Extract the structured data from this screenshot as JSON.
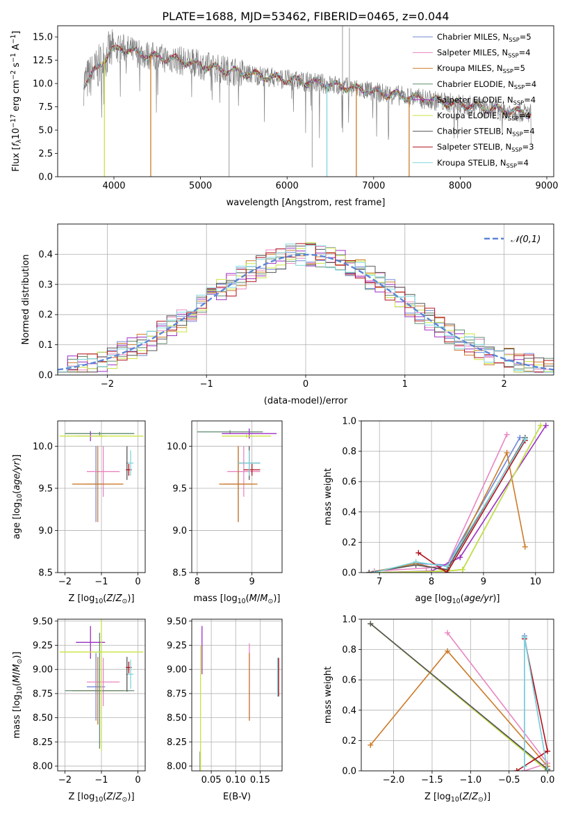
{
  "figure_title": "PLATE=1688, MJD=53462, FIBERID=0465, z=0.044",
  "colors": {
    "Chabrier MILES": "#6f87d6",
    "Salpeter MILES": "#e985c1",
    "Kroupa MILES": "#cc7a28",
    "Chabrier ELODIE": "#5f8a6e",
    "Salpeter ELODIE": "#9b2fc2",
    "Kroupa ELODIE": "#c9e33f",
    "Chabrier STELIB": "#555555",
    "Salpeter STELIB": "#b0101a",
    "Kroupa STELIB": "#7ed6dc",
    "data": "#808080",
    "normal": "#5b86d6"
  },
  "chart_data": [
    {
      "id": "spectrum",
      "type": "line",
      "title": "PLATE=1688, MJD=53462, FIBERID=0465, z=0.044",
      "xlabel": "wavelength [Angstrom, rest frame]",
      "ylabel": "Flux [f_λ 10^-17 erg cm^-2 s^-1 A^-1]",
      "xlim": [
        3350,
        9080
      ],
      "ylim": [
        0,
        16.2
      ],
      "xticks": [
        4000,
        5000,
        6000,
        7000,
        8000,
        9000
      ],
      "yticks": [
        0.0,
        2.5,
        5.0,
        7.5,
        10.0,
        12.5,
        15.0
      ],
      "grid": false,
      "legend_position": "top-right",
      "legend": [
        {
          "name": "Chabrier MILES",
          "nssp": "5"
        },
        {
          "name": "Salpeter MILES",
          "nssp": "4"
        },
        {
          "name": "Kroupa MILES",
          "nssp": "5"
        },
        {
          "name": "Chabrier ELODIE",
          "nssp": "4"
        },
        {
          "name": "Salpeter ELODIE",
          "nssp": "4"
        },
        {
          "name": "Kroupa ELODIE",
          "nssp": "4"
        },
        {
          "name": "Chabrier STELIB",
          "nssp": "4"
        },
        {
          "name": "Salpeter STELIB",
          "nssp": "3"
        },
        {
          "name": "Kroupa STELIB",
          "nssp": "4"
        }
      ],
      "continuum_x": [
        3650,
        3800,
        3950,
        4100,
        4300,
        4500,
        4700,
        4900,
        5200,
        5500,
        5800,
        6100,
        6400,
        6700,
        7000,
        7300,
        7600,
        7900,
        8200,
        8500,
        8820
      ],
      "continuum_y": [
        10.0,
        11.5,
        13.4,
        13.8,
        13.2,
        12.8,
        12.6,
        12.2,
        11.6,
        11.1,
        10.7,
        10.3,
        10.0,
        9.6,
        9.1,
        8.7,
        8.3,
        7.9,
        7.5,
        7.1,
        6.8
      ],
      "dips": [
        {
          "x": 3890,
          "y": 0.0
        },
        {
          "x": 4425,
          "y": 0.0
        },
        {
          "x": 6460,
          "y": 0.0
        },
        {
          "x": 6800,
          "y": 0.0
        },
        {
          "x": 7410,
          "y": 0.0
        }
      ],
      "spikes": [
        {
          "x": 6640,
          "y": 16.2
        },
        {
          "x": 6720,
          "y": 16.0
        },
        {
          "x": 5330,
          "y": 0.0
        },
        {
          "x": 6290,
          "y": 1.0
        }
      ]
    },
    {
      "id": "residuals",
      "type": "histogram",
      "xlabel": "(data-model)/error",
      "ylabel": "Normed distribution",
      "xlim": [
        -2.5,
        2.5
      ],
      "ylim": [
        0,
        0.5
      ],
      "xticks": [
        -2,
        -1,
        0,
        1,
        2
      ],
      "yticks": [
        0.0,
        0.1,
        0.2,
        0.3,
        0.4
      ],
      "grid": true,
      "legend_position": "top-right",
      "legend": [
        "𝒩(0,1)"
      ],
      "bin_width": 0.1
    },
    {
      "id": "age-vs-metallicity",
      "type": "errorbar",
      "xlabel": "Z [log10(Z/Z⊙)]",
      "ylabel": "age  [log10(age/yr)]",
      "xlim": [
        -2.2,
        0.2
      ],
      "ylim": [
        8.5,
        10.3
      ],
      "xticks": [
        -2,
        -1,
        0
      ],
      "yticks": [
        8.5,
        9.0,
        9.5,
        10.0
      ],
      "grid": true,
      "points": [
        {
          "model": "Chabrier MILES",
          "x": -1.15,
          "xerr": 0.25,
          "y": 9.55,
          "yerr": 0.45
        },
        {
          "model": "Salpeter MILES",
          "x": -0.95,
          "xerr": 0.45,
          "y": 9.7,
          "yerr": 0.3
        },
        {
          "model": "Kroupa MILES",
          "x": -1.1,
          "xerr": 0.7,
          "y": 9.55,
          "yerr": 0.45
        },
        {
          "model": "Chabrier ELODIE",
          "x": -1.05,
          "xerr": 0.95,
          "y": 10.15,
          "yerr": 0.02
        },
        {
          "model": "Salpeter ELODIE",
          "x": -1.3,
          "xerr": 0.4,
          "y": 10.12,
          "yerr": 0.06
        },
        {
          "model": "Kroupa ELODIE",
          "x": -1.0,
          "xerr": 1.15,
          "y": 10.12,
          "yerr": 0.02
        },
        {
          "model": "Chabrier STELIB",
          "x": -0.3,
          "xerr": 0.02,
          "y": 9.8,
          "yerr": 0.2
        },
        {
          "model": "Salpeter STELIB",
          "x": -0.25,
          "xerr": 0.08,
          "y": 9.72,
          "yerr": 0.07
        },
        {
          "model": "Kroupa STELIB",
          "x": -0.2,
          "xerr": 0.08,
          "y": 9.8,
          "yerr": 0.15
        }
      ]
    },
    {
      "id": "age-vs-mass",
      "type": "errorbar",
      "xlabel": "mass [log10(M/M⊙)]",
      "ylabel": "",
      "xlim": [
        7.9,
        9.55
      ],
      "ylim": [
        8.5,
        10.3
      ],
      "xticks": [
        8,
        9
      ],
      "yticks": [
        8.5,
        9.0,
        9.5,
        10.0
      ],
      "grid": true,
      "points": [
        {
          "model": "Chabrier MILES",
          "x": 8.75,
          "xerr": 0.25,
          "y": 9.55,
          "yerr": 0.45
        },
        {
          "model": "Salpeter MILES",
          "x": 8.85,
          "xerr": 0.3,
          "y": 9.7,
          "yerr": 0.3
        },
        {
          "model": "Kroupa MILES",
          "x": 8.75,
          "xerr": 0.35,
          "y": 9.55,
          "yerr": 0.45
        },
        {
          "model": "Chabrier ELODIE",
          "x": 8.6,
          "xerr": 0.6,
          "y": 10.17,
          "yerr": 0.02
        },
        {
          "model": "Salpeter ELODIE",
          "x": 8.95,
          "xerr": 0.5,
          "y": 10.15,
          "yerr": 0.06
        },
        {
          "model": "Kroupa ELODIE",
          "x": 8.9,
          "xerr": 0.45,
          "y": 10.12,
          "yerr": 0.02
        },
        {
          "model": "Chabrier STELIB",
          "x": 8.95,
          "xerr": 0.2,
          "y": 9.8,
          "yerr": 0.2
        },
        {
          "model": "Salpeter STELIB",
          "x": 9.0,
          "xerr": 0.15,
          "y": 9.72,
          "yerr": 0.07
        },
        {
          "model": "Kroupa STELIB",
          "x": 8.95,
          "xerr": 0.2,
          "y": 9.8,
          "yerr": 0.15
        }
      ]
    },
    {
      "id": "mass-weight-vs-age",
      "type": "line",
      "xlabel": "age  [log10(age/yr)]",
      "ylabel": "mass weight",
      "xlim": [
        6.65,
        10.35
      ],
      "ylim": [
        0,
        1
      ],
      "xticks": [
        7,
        8,
        9,
        10
      ],
      "yticks": [
        0.0,
        0.2,
        0.4,
        0.6,
        0.8,
        1.0
      ],
      "grid": true,
      "series": [
        {
          "model": "Chabrier MILES",
          "x": [
            6.8,
            7.7,
            8.3,
            9.7
          ],
          "y": [
            0.0,
            0.06,
            0.05,
            0.89
          ]
        },
        {
          "model": "Salpeter MILES",
          "x": [
            6.9,
            7.9,
            8.3,
            9.45
          ],
          "y": [
            0.01,
            0.03,
            0.05,
            0.91
          ]
        },
        {
          "model": "Kroupa MILES",
          "x": [
            6.8,
            7.7,
            8.3,
            9.45,
            9.8
          ],
          "y": [
            0.0,
            0.06,
            0.01,
            0.79,
            0.17
          ]
        },
        {
          "model": "Chabrier ELODIE",
          "x": [
            6.9,
            8.3,
            8.6,
            10.1
          ],
          "y": [
            0.0,
            0.01,
            0.02,
            0.97
          ]
        },
        {
          "model": "Salpeter ELODIE",
          "x": [
            6.9,
            8.0,
            8.55,
            10.2
          ],
          "y": [
            0.0,
            0.01,
            0.1,
            0.97
          ]
        },
        {
          "model": "Kroupa ELODIE",
          "x": [
            6.9,
            8.3,
            8.6,
            10.1
          ],
          "y": [
            0.0,
            0.01,
            0.02,
            0.97
          ]
        },
        {
          "model": "Chabrier STELIB",
          "x": [
            6.8,
            7.7,
            8.3,
            9.8
          ],
          "y": [
            0.0,
            0.05,
            0.02,
            0.89
          ]
        },
        {
          "model": "Salpeter STELIB",
          "x": [
            7.75,
            8.3,
            9.8
          ],
          "y": [
            0.13,
            0.0,
            0.87
          ]
        },
        {
          "model": "Kroupa STELIB",
          "x": [
            6.9,
            7.7,
            8.3,
            9.8
          ],
          "y": [
            0.0,
            0.07,
            0.04,
            0.88
          ]
        }
      ]
    },
    {
      "id": "mass-vs-metallicity",
      "type": "errorbar",
      "xlabel": "Z [log10(Z/Z⊙)]",
      "ylabel": "mass [log10(M/M⊙)]",
      "xlim": [
        -2.2,
        0.2
      ],
      "ylim": [
        7.95,
        9.52
      ],
      "xticks": [
        -2,
        -1,
        0
      ],
      "yticks": [
        8.0,
        8.25,
        8.5,
        8.75,
        9.0,
        9.25,
        9.5
      ],
      "grid": true,
      "points": [
        {
          "model": "Chabrier MILES",
          "x": -1.15,
          "xerr": 0.25,
          "y": 8.82,
          "yerr": 0.35
        },
        {
          "model": "Salpeter MILES",
          "x": -0.95,
          "xerr": 0.45,
          "y": 8.87,
          "yerr": 0.25
        },
        {
          "model": "Kroupa MILES",
          "x": -1.1,
          "xerr": 0.7,
          "y": 8.78,
          "yerr": 0.35
        },
        {
          "model": "Chabrier ELODIE",
          "x": -1.05,
          "xerr": 0.95,
          "y": 8.78,
          "yerr": 0.6
        },
        {
          "model": "Salpeter ELODIE",
          "x": -1.3,
          "xerr": 0.4,
          "y": 9.28,
          "yerr": 0.17
        },
        {
          "model": "Kroupa ELODIE",
          "x": -1.0,
          "xerr": 1.15,
          "y": 9.18,
          "yerr": 1.02
        },
        {
          "model": "Chabrier STELIB",
          "x": -0.3,
          "xerr": 0.02,
          "y": 8.95,
          "yerr": 0.18
        },
        {
          "model": "Salpeter STELIB",
          "x": -0.25,
          "xerr": 0.08,
          "y": 9.02,
          "yerr": 0.06
        },
        {
          "model": "Kroupa STELIB",
          "x": -0.2,
          "xerr": 0.08,
          "y": 8.95,
          "yerr": 0.15
        }
      ]
    },
    {
      "id": "mass-vs-ebv",
      "type": "errorbar",
      "xlabel": "E(B-V)",
      "ylabel": "",
      "xlim": [
        0.01,
        0.195
      ],
      "ylim": [
        7.95,
        9.52
      ],
      "xticks": [
        0.05,
        0.1,
        0.15
      ],
      "xtick_labels": [
        "0.05",
        "0.10",
        "0.15"
      ],
      "yticks": [
        8.0,
        8.25,
        8.5,
        8.75,
        9.0,
        9.25,
        9.5
      ],
      "grid": true,
      "points": [
        {
          "model": "Chabrier MILES",
          "x": 0.186,
          "xerr": 0,
          "y": 8.92,
          "yerr": 0.2
        },
        {
          "model": "Salpeter MILES",
          "x": 0.128,
          "xerr": 0,
          "y": 8.87,
          "yerr": 0.4
        },
        {
          "model": "Kroupa MILES",
          "x": 0.128,
          "xerr": 0,
          "y": 8.82,
          "yerr": 0.35
        },
        {
          "model": "Chabrier ELODIE",
          "x": 0.027,
          "xerr": 0,
          "y": 8.05,
          "yerr": 0.1
        },
        {
          "model": "Salpeter ELODIE",
          "x": 0.031,
          "xerr": 0,
          "y": 9.2,
          "yerr": 0.25
        },
        {
          "model": "Kroupa ELODIE",
          "x": 0.028,
          "xerr": 0,
          "y": 8.6,
          "yerr": 0.65
        },
        {
          "model": "Chabrier STELIB",
          "x": 0.187,
          "xerr": 0,
          "y": 8.92,
          "yerr": 0.2
        },
        {
          "model": "Salpeter STELIB",
          "x": 0.188,
          "xerr": 0,
          "y": 8.92,
          "yerr": 0.2
        },
        {
          "model": "Kroupa STELIB",
          "x": 0.186,
          "xerr": 0,
          "y": 8.92,
          "yerr": 0.2
        }
      ]
    },
    {
      "id": "mass-weight-vs-metallicity",
      "type": "line",
      "xlabel": "Z [log10(Z/Z⊙)]",
      "ylabel": "mass weight",
      "xlim": [
        -2.42,
        0.08
      ],
      "ylim": [
        0,
        1
      ],
      "xticks": [
        -2.0,
        -1.5,
        -1.0,
        -0.5,
        0.0
      ],
      "xtick_labels": [
        "−2.0",
        "−1.5",
        "−1.0",
        "−0.5",
        "0.0"
      ],
      "yticks": [
        0.0,
        0.2,
        0.4,
        0.6,
        0.8,
        1.0
      ],
      "grid": true,
      "series": [
        {
          "model": "Chabrier MILES",
          "x": [
            -0.3,
            -0.3,
            0.0
          ],
          "y": [
            0.0,
            0.89,
            0.0
          ]
        },
        {
          "model": "Salpeter MILES",
          "x": [
            -1.3,
            0.0,
            -0.3
          ],
          "y": [
            0.91,
            0.05,
            0.0
          ]
        },
        {
          "model": "Kroupa MILES",
          "x": [
            -2.3,
            -1.3,
            0.0
          ],
          "y": [
            0.17,
            0.79,
            0.03
          ]
        },
        {
          "model": "Chabrier ELODIE",
          "x": [
            -2.3,
            0.0
          ],
          "y": [
            0.97,
            0.0
          ]
        },
        {
          "model": "Salpeter ELODIE",
          "x": [
            -2.3,
            0.0
          ],
          "y": [
            0.97,
            0.01
          ]
        },
        {
          "model": "Kroupa ELODIE",
          "x": [
            -2.3,
            0.0
          ],
          "y": [
            0.97,
            0.0
          ]
        },
        {
          "model": "Chabrier STELIB",
          "x": [
            -2.3,
            0.0
          ],
          "y": [
            0.97,
            0.01
          ]
        },
        {
          "model": "Salpeter STELIB",
          "x": [
            -0.4,
            0.0,
            -0.3
          ],
          "y": [
            0.0,
            0.13,
            0.87
          ]
        },
        {
          "model": "Kroupa STELIB",
          "x": [
            -0.3,
            -0.3,
            0.0
          ],
          "y": [
            0.03,
            0.88,
            0.0
          ]
        }
      ]
    }
  ]
}
